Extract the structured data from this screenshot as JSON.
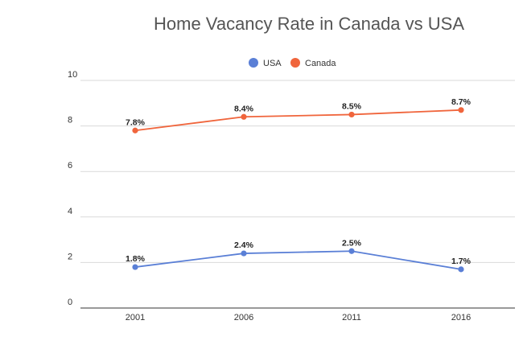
{
  "chart_data": {
    "type": "line",
    "title": "Home Vacancy Rate in Canada vs USA",
    "xlabel": "",
    "ylabel": "",
    "categories": [
      "2001",
      "2006",
      "2011",
      "2016"
    ],
    "ylim": [
      0,
      10
    ],
    "yticks": [
      0,
      2,
      4,
      6,
      8,
      10
    ],
    "grid": true,
    "legend_position": "top",
    "series": [
      {
        "name": "USA",
        "color": "#5a7fd6",
        "values": [
          1.8,
          2.4,
          2.5,
          1.7
        ],
        "labels": [
          "1.8%",
          "2.4%",
          "2.5%",
          "1.7%"
        ]
      },
      {
        "name": "Canada",
        "color": "#f0653c",
        "values": [
          7.8,
          8.4,
          8.5,
          8.7
        ],
        "labels": [
          "7.8%",
          "8.4%",
          "8.5%",
          "8.7%"
        ]
      }
    ]
  }
}
